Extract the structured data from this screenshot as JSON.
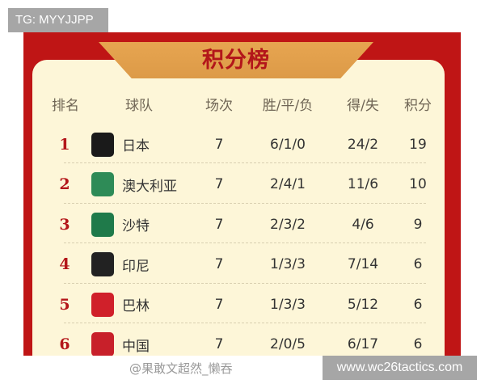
{
  "badge_top": "TG: MYYJJPP",
  "title": "积分榜",
  "headers": {
    "rank": "排名",
    "team": "球队",
    "played": "场次",
    "wdl": "胜/平/负",
    "goals": "得/失",
    "points": "积分"
  },
  "rows": [
    {
      "rank": "1",
      "team": "日本",
      "played": "7",
      "wdl": "6/1/0",
      "goals": "24/2",
      "points": "19",
      "flag_icon": "japan-crest-icon",
      "flag_color": "#1a1a1a"
    },
    {
      "rank": "2",
      "team": "澳大利亚",
      "played": "7",
      "wdl": "2/4/1",
      "goals": "11/6",
      "points": "10",
      "flag_icon": "australia-crest-icon",
      "flag_color": "#2e8b57"
    },
    {
      "rank": "3",
      "team": "沙特",
      "played": "7",
      "wdl": "2/3/2",
      "goals": "4/6",
      "points": "9",
      "flag_icon": "saudi-crest-icon",
      "flag_color": "#1f7a4a"
    },
    {
      "rank": "4",
      "team": "印尼",
      "played": "7",
      "wdl": "1/3/3",
      "goals": "7/14",
      "points": "6",
      "flag_icon": "indonesia-crest-icon",
      "flag_color": "#222"
    },
    {
      "rank": "5",
      "team": "巴林",
      "played": "7",
      "wdl": "1/3/3",
      "goals": "5/12",
      "points": "6",
      "flag_icon": "bahrain-crest-icon",
      "flag_color": "#d0202a"
    },
    {
      "rank": "6",
      "team": "中国",
      "played": "7",
      "wdl": "2/0/5",
      "goals": "6/17",
      "points": "6",
      "flag_icon": "china-crest-icon",
      "flag_color": "#c8202a"
    }
  ],
  "watermark": "@果敢文超然_懒吞",
  "badge_bottom": "www.wc26tactics.com",
  "colors": {
    "frame": "#bf1515",
    "card": "#fdf6d8",
    "banner": "#e0a04c",
    "rank": "#b3161a"
  }
}
